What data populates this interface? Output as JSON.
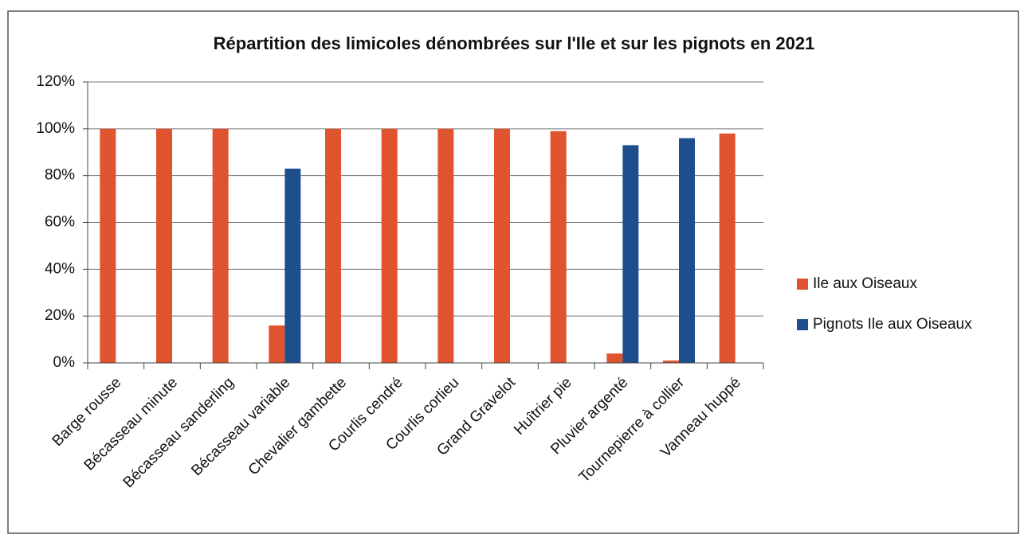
{
  "chart_data": {
    "type": "bar",
    "title": "Répartition des limicoles dénombrées sur l'Ile et sur les pignots en 2021",
    "categories": [
      "Barge rousse",
      "Bécasseau minute",
      "Bécasseau sanderling",
      "Bécasseau variable",
      "Chevalier gambette",
      "Courlis cendré",
      "Courlis corlieu",
      "Grand Gravelot",
      "Huîtrier pie",
      "Pluvier argenté",
      "Tournepierre à collier",
      "Vanneau huppé"
    ],
    "series": [
      {
        "name": "Ile aux Oiseaux",
        "color": "#e0532f",
        "values": [
          100,
          100,
          100,
          16,
          100,
          100,
          100,
          100,
          99,
          4,
          1,
          98
        ]
      },
      {
        "name": "Pignots Ile aux Oiseaux",
        "color": "#1f4e8c",
        "values": [
          0,
          0,
          0,
          83,
          0,
          0,
          0,
          0,
          0,
          93,
          96,
          0
        ]
      }
    ],
    "ylim": [
      0,
      120
    ],
    "yticks": [
      {
        "value": 0,
        "label": "0%"
      },
      {
        "value": 20,
        "label": "20%"
      },
      {
        "value": 40,
        "label": "40%"
      },
      {
        "value": 60,
        "label": "60%"
      },
      {
        "value": 80,
        "label": "80%"
      },
      {
        "value": 100,
        "label": "100%"
      },
      {
        "value": 120,
        "label": "120%"
      }
    ],
    "grid": true,
    "legend": "right"
  }
}
